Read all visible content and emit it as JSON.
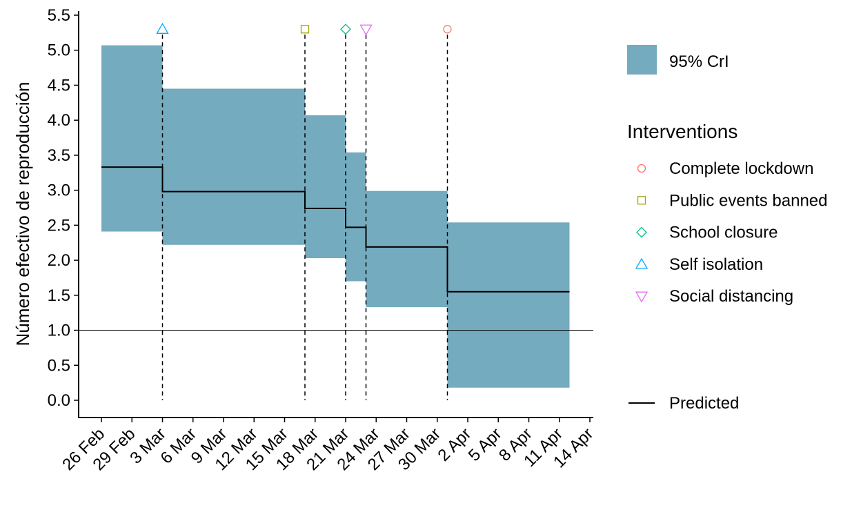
{
  "chart_data": {
    "type": "step",
    "ylabel": "Número efectivo de reproducción",
    "xlabel": "",
    "ylim": [
      0,
      5.5
    ],
    "yticks": [
      "0.0",
      "0.5",
      "1.0",
      "1.5",
      "2.0",
      "2.5",
      "3.0",
      "3.5",
      "4.0",
      "4.5",
      "5.0",
      "5.5"
    ],
    "xlim": [
      "2020-02-26",
      "2020-04-14"
    ],
    "xticks": [
      {
        "date": "2020-02-26",
        "label": "26 Feb"
      },
      {
        "date": "2020-02-29",
        "label": "29 Feb"
      },
      {
        "date": "2020-03-03",
        "label": "3 Mar"
      },
      {
        "date": "2020-03-06",
        "label": "6 Mar"
      },
      {
        "date": "2020-03-09",
        "label": "9 Mar"
      },
      {
        "date": "2020-03-12",
        "label": "12 Mar"
      },
      {
        "date": "2020-03-15",
        "label": "15 Mar"
      },
      {
        "date": "2020-03-18",
        "label": "18 Mar"
      },
      {
        "date": "2020-03-21",
        "label": "21 Mar"
      },
      {
        "date": "2020-03-24",
        "label": "24 Mar"
      },
      {
        "date": "2020-03-27",
        "label": "27 Mar"
      },
      {
        "date": "2020-03-30",
        "label": "30 Mar"
      },
      {
        "date": "2020-04-02",
        "label": "2 Apr"
      },
      {
        "date": "2020-04-05",
        "label": "5 Apr"
      },
      {
        "date": "2020-04-08",
        "label": "8 Apr"
      },
      {
        "date": "2020-04-11",
        "label": "11 Apr"
      },
      {
        "date": "2020-04-14",
        "label": "14 Apr"
      }
    ],
    "reference_line": 1.0,
    "segments": [
      {
        "start": "2020-02-26",
        "end": "2020-03-03",
        "predicted": 3.33,
        "lower": 2.41,
        "upper": 5.07
      },
      {
        "start": "2020-03-03",
        "end": "2020-03-17",
        "predicted": 2.98,
        "lower": 2.22,
        "upper": 4.45
      },
      {
        "start": "2020-03-17",
        "end": "2020-03-21",
        "predicted": 2.74,
        "lower": 2.03,
        "upper": 4.07
      },
      {
        "start": "2020-03-21",
        "end": "2020-03-23",
        "predicted": 2.47,
        "lower": 1.7,
        "upper": 3.54
      },
      {
        "start": "2020-03-23",
        "end": "2020-03-31",
        "predicted": 2.19,
        "lower": 1.33,
        "upper": 2.99
      },
      {
        "start": "2020-03-31",
        "end": "2020-04-12",
        "predicted": 1.55,
        "lower": 0.18,
        "upper": 2.54
      }
    ],
    "interventions": [
      {
        "name": "Self isolation",
        "date": "2020-03-03",
        "shape": "triangle-up",
        "color": "#00A9FF"
      },
      {
        "name": "Public events banned",
        "date": "2020-03-17",
        "shape": "square",
        "color": "#A3A500"
      },
      {
        "name": "School closure",
        "date": "2020-03-21",
        "shape": "diamond",
        "color": "#00BF7D"
      },
      {
        "name": "Social distancing",
        "date": "2020-03-23",
        "shape": "triangle-down",
        "color": "#E76BF3"
      },
      {
        "name": "Complete lockdown",
        "date": "2020-03-31",
        "shape": "circle",
        "color": "#F8766D"
      }
    ],
    "marker_y": 5.3,
    "band_color": "#74ABBF",
    "line_color": "#000000"
  },
  "legend": {
    "band_label": "95% CrI",
    "interventions_title": "Interventions",
    "interventions": [
      {
        "label": "Complete lockdown",
        "shape": "circle",
        "color": "#F8766D"
      },
      {
        "label": "Public events banned",
        "shape": "square",
        "color": "#A3A500"
      },
      {
        "label": "School closure",
        "shape": "diamond",
        "color": "#00BF7D"
      },
      {
        "label": "Self isolation",
        "shape": "triangle-up",
        "color": "#00A9FF"
      },
      {
        "label": "Social distancing",
        "shape": "triangle-down",
        "color": "#E76BF3"
      }
    ],
    "line_label": "Predicted"
  }
}
